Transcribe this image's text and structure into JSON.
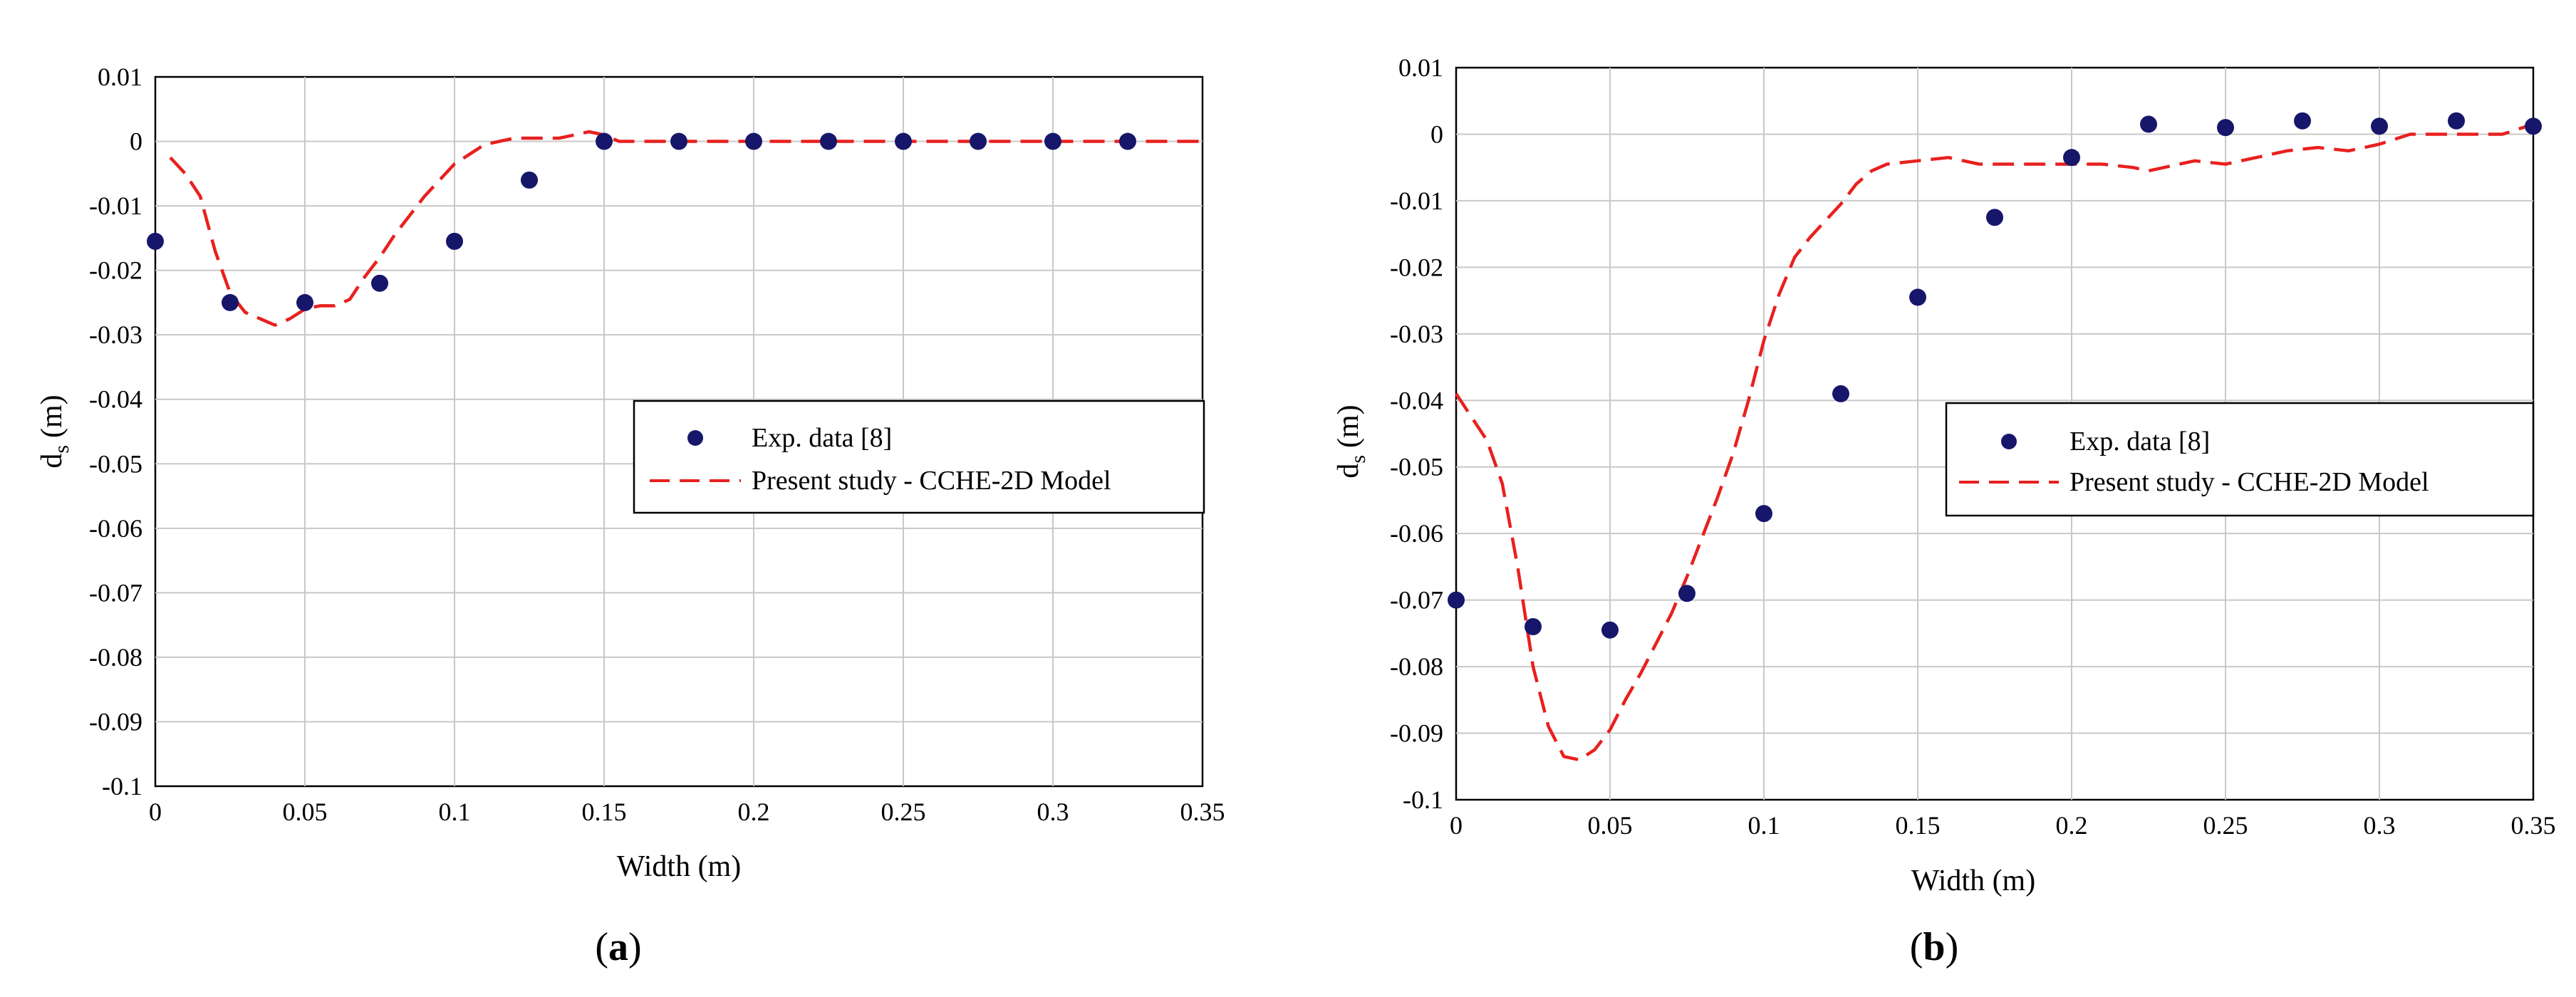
{
  "chart_data": [
    {
      "type": "scatter",
      "panel_label": "a",
      "xlabel": "Width (m)",
      "ylabel_main": "d",
      "ylabel_sub": "s",
      "ylabel_unit": "(m)",
      "xlim": [
        0,
        0.35
      ],
      "ylim": [
        -0.1,
        0.01
      ],
      "xticks": [
        0,
        0.05,
        0.1,
        0.15,
        0.2,
        0.25,
        0.3,
        0.35
      ],
      "xtick_labels": [
        "0",
        "0.05",
        "0.1",
        "0.15",
        "0.2",
        "0.25",
        "0.3",
        "0.35"
      ],
      "yticks": [
        0.01,
        0,
        -0.01,
        -0.02,
        -0.03,
        -0.04,
        -0.05,
        -0.06,
        -0.07,
        -0.08,
        -0.09,
        -0.1
      ],
      "ytick_labels": [
        "0.01",
        "0",
        "-0.01",
        "-0.02",
        "-0.03",
        "-0.04",
        "-0.05",
        "-0.06",
        "-0.07",
        "-0.08",
        "-0.09",
        "-0.1"
      ],
      "grid": true,
      "legend_position": "center-right",
      "series": [
        {
          "name": "Exp. data [8]",
          "kind": "points",
          "color": "#16166b",
          "x": [
            0,
            0.025,
            0.05,
            0.075,
            0.1,
            0.125,
            0.15,
            0.175,
            0.2,
            0.225,
            0.25,
            0.275,
            0.3,
            0.325
          ],
          "y": [
            -0.0155,
            -0.025,
            -0.025,
            -0.022,
            -0.0155,
            -0.006,
            0,
            0,
            0,
            0,
            0,
            0,
            0,
            0
          ]
        },
        {
          "name": "Present study -  CCHE-2D Model",
          "kind": "dashed-line",
          "color": "#e8201e",
          "x": [
            0.005,
            0.01,
            0.015,
            0.02,
            0.025,
            0.03,
            0.035,
            0.04,
            0.045,
            0.05,
            0.055,
            0.06,
            0.065,
            0.07,
            0.075,
            0.08,
            0.085,
            0.09,
            0.095,
            0.1,
            0.105,
            0.11,
            0.115,
            0.12,
            0.125,
            0.13,
            0.135,
            0.14,
            0.145,
            0.15,
            0.155,
            0.16,
            0.165,
            0.17,
            0.175,
            0.2,
            0.25,
            0.3,
            0.35
          ],
          "y": [
            -0.0025,
            -0.005,
            -0.0085,
            -0.017,
            -0.0235,
            -0.0265,
            -0.0275,
            -0.0285,
            -0.0275,
            -0.026,
            -0.0255,
            -0.0255,
            -0.0245,
            -0.021,
            -0.018,
            -0.0145,
            -0.0115,
            -0.0085,
            -0.006,
            -0.0035,
            -0.002,
            -0.0005,
            0,
            0.0005,
            0.0005,
            0.0005,
            0.0005,
            0.001,
            0.0015,
            0.001,
            0,
            0,
            0,
            0,
            0,
            0,
            0,
            0,
            0
          ]
        }
      ]
    },
    {
      "type": "scatter",
      "panel_label": "b",
      "xlabel": "Width (m)",
      "ylabel_main": "d",
      "ylabel_sub": "s",
      "ylabel_unit": "(m)",
      "xlim": [
        0,
        0.35
      ],
      "ylim": [
        -0.1,
        0.01
      ],
      "xticks": [
        0,
        0.05,
        0.1,
        0.15,
        0.2,
        0.25,
        0.3,
        0.35
      ],
      "xtick_labels": [
        "0",
        "0.05",
        "0.1",
        "0.15",
        "0.2",
        "0.25",
        "0.3",
        "0.35"
      ],
      "yticks": [
        0.01,
        0,
        -0.01,
        -0.02,
        -0.03,
        -0.04,
        -0.05,
        -0.06,
        -0.07,
        -0.08,
        -0.09,
        -0.1
      ],
      "ytick_labels": [
        "0.01",
        "0",
        "-0.01",
        "-0.02",
        "-0.03",
        "-0.04",
        "-0.05",
        "-0.06",
        "-0.07",
        "-0.08",
        "-0.09",
        "-0.1"
      ],
      "grid": true,
      "legend_position": "center-right",
      "series": [
        {
          "name": "Exp. data [8]",
          "kind": "points",
          "color": "#16166b",
          "x": [
            0,
            0.025,
            0.05,
            0.075,
            0.1,
            0.125,
            0.15,
            0.175,
            0.2,
            0.225,
            0.25,
            0.275,
            0.3,
            0.325,
            0.35
          ],
          "y": [
            -0.07,
            -0.074,
            -0.0745,
            -0.069,
            -0.057,
            -0.039,
            -0.0245,
            -0.0125,
            -0.0035,
            0.0015,
            0.001,
            0.002,
            0.0012,
            0.002,
            0.0012
          ]
        },
        {
          "name": "Present study -  CCHE-2D Model",
          "kind": "dashed-line",
          "color": "#e8201e",
          "x": [
            0,
            0.01,
            0.015,
            0.02,
            0.025,
            0.03,
            0.035,
            0.04,
            0.045,
            0.05,
            0.055,
            0.06,
            0.065,
            0.07,
            0.075,
            0.08,
            0.085,
            0.09,
            0.095,
            0.1,
            0.105,
            0.11,
            0.115,
            0.12,
            0.125,
            0.13,
            0.135,
            0.14,
            0.15,
            0.16,
            0.17,
            0.18,
            0.19,
            0.2,
            0.21,
            0.22,
            0.225,
            0.23,
            0.24,
            0.25,
            0.26,
            0.27,
            0.28,
            0.29,
            0.3,
            0.31,
            0.32,
            0.33,
            0.34,
            0.35
          ],
          "y": [
            -0.039,
            -0.046,
            -0.0525,
            -0.065,
            -0.08,
            -0.089,
            -0.0935,
            -0.094,
            -0.0925,
            -0.0895,
            -0.085,
            -0.081,
            -0.0765,
            -0.072,
            -0.0665,
            -0.0605,
            -0.0545,
            -0.048,
            -0.04,
            -0.031,
            -0.024,
            -0.0185,
            -0.0155,
            -0.013,
            -0.0105,
            -0.0075,
            -0.0055,
            -0.0045,
            -0.004,
            -0.0035,
            -0.0045,
            -0.0045,
            -0.0045,
            -0.0045,
            -0.0045,
            -0.005,
            -0.0055,
            -0.005,
            -0.004,
            -0.0045,
            -0.0035,
            -0.0025,
            -0.002,
            -0.0025,
            -0.0015,
            0,
            0,
            0,
            0,
            0.0015
          ]
        }
      ]
    }
  ]
}
